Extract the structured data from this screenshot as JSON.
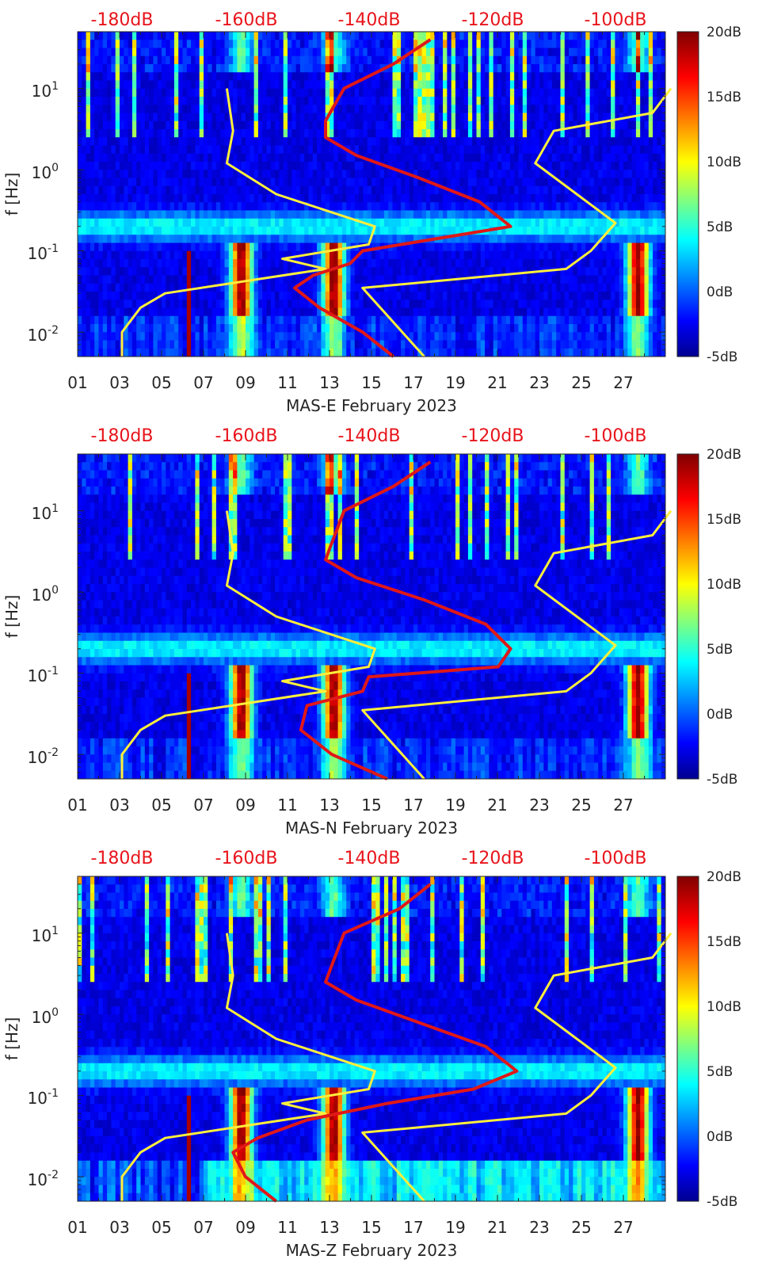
{
  "colors": {
    "top_label": "#e8141b",
    "noise_model": "#ffef3b",
    "median_curve": "#e01818",
    "text": "#262626"
  },
  "chart_data": [
    {
      "type": "heatmap",
      "name": "MAS-E",
      "title": "",
      "xlabel": "MAS-E February 2023",
      "ylabel": "f [Hz]",
      "x_unit": "day",
      "xlim": [
        1,
        29
      ],
      "x_tick_labels": [
        "01",
        "03",
        "05",
        "07",
        "09",
        "11",
        "13",
        "15",
        "17",
        "19",
        "21",
        "23",
        "25",
        "27"
      ],
      "y_scale": "log",
      "ylim": [
        0.005,
        50
      ],
      "y_tick_values": [
        0.01,
        0.1,
        1,
        10
      ],
      "y_tick_bases": [
        "10",
        "10",
        "10",
        "10"
      ],
      "y_tick_exponents": [
        "-2",
        "-1",
        "0",
        "1"
      ],
      "top_axis_labels": [
        "-180dB",
        "-160dB",
        "-140dB",
        "-120dB",
        "-100dB"
      ],
      "top_axis_db": [
        -180,
        -160,
        -140,
        -120,
        -100
      ],
      "colorbar": {
        "min": -5,
        "max": 20,
        "tick_labels": [
          "20dB",
          "15dB",
          "10dB",
          "5dB",
          "0dB",
          "-5dB"
        ],
        "tick_values": [
          20,
          15,
          10,
          5,
          0,
          -5
        ]
      },
      "series": [
        {
          "name": "Noise model low",
          "color": "yellow",
          "points": [
            [
              0.005,
              -180
            ],
            [
              0.01,
              -180
            ],
            [
              0.02,
              -177
            ],
            [
              0.03,
              -173
            ],
            [
              0.06,
              -147
            ],
            [
              0.08,
              -154
            ],
            [
              0.12,
              -140
            ],
            [
              0.2,
              -139
            ],
            [
              0.5,
              -155
            ],
            [
              1.2,
              -163
            ],
            [
              3,
              -162
            ],
            [
              10,
              -163
            ]
          ]
        },
        {
          "name": "Noise model high",
          "color": "yellow",
          "points": [
            [
              0.005,
              -131
            ],
            [
              0.035,
              -141
            ],
            [
              0.06,
              -108
            ],
            [
              0.1,
              -104
            ],
            [
              0.22,
              -100
            ],
            [
              1.2,
              -113
            ],
            [
              3,
              -110
            ],
            [
              5,
              -94
            ],
            [
              10,
              -91
            ]
          ]
        },
        {
          "name": "Median PSD",
          "color": "red",
          "points": [
            [
              0.005,
              -136
            ],
            [
              0.01,
              -141
            ],
            [
              0.02,
              -148
            ],
            [
              0.035,
              -152
            ],
            [
              0.05,
              -149
            ],
            [
              0.07,
              -143
            ],
            [
              0.1,
              -141
            ],
            [
              0.2,
              -117
            ],
            [
              0.4,
              -122
            ],
            [
              0.8,
              -132
            ],
            [
              1.5,
              -142
            ],
            [
              2.5,
              -147
            ],
            [
              4,
              -147
            ],
            [
              10,
              -144
            ],
            [
              20,
              -136
            ],
            [
              40,
              -130
            ]
          ]
        }
      ]
    },
    {
      "type": "heatmap",
      "name": "MAS-N",
      "title": "",
      "xlabel": "MAS-N February 2023",
      "ylabel": "f [Hz]",
      "x_unit": "day",
      "xlim": [
        1,
        29
      ],
      "x_tick_labels": [
        "01",
        "03",
        "05",
        "07",
        "09",
        "11",
        "13",
        "15",
        "17",
        "19",
        "21",
        "23",
        "25",
        "27"
      ],
      "y_scale": "log",
      "ylim": [
        0.005,
        50
      ],
      "y_tick_values": [
        0.01,
        0.1,
        1,
        10
      ],
      "y_tick_bases": [
        "10",
        "10",
        "10",
        "10"
      ],
      "y_tick_exponents": [
        "-2",
        "-1",
        "0",
        "1"
      ],
      "top_axis_labels": [
        "-180dB",
        "-160dB",
        "-140dB",
        "-120dB",
        "-100dB"
      ],
      "top_axis_db": [
        -180,
        -160,
        -140,
        -120,
        -100
      ],
      "colorbar": {
        "min": -5,
        "max": 20,
        "tick_labels": [
          "20dB",
          "15dB",
          "10dB",
          "5dB",
          "0dB",
          "-5dB"
        ],
        "tick_values": [
          20,
          15,
          10,
          5,
          0,
          -5
        ]
      },
      "series": [
        {
          "name": "Noise model low",
          "color": "yellow",
          "points": [
            [
              0.005,
              -180
            ],
            [
              0.01,
              -180
            ],
            [
              0.02,
              -177
            ],
            [
              0.03,
              -173
            ],
            [
              0.06,
              -147
            ],
            [
              0.08,
              -154
            ],
            [
              0.12,
              -140
            ],
            [
              0.2,
              -139
            ],
            [
              0.5,
              -155
            ],
            [
              1.2,
              -163
            ],
            [
              3,
              -162
            ],
            [
              10,
              -163
            ]
          ]
        },
        {
          "name": "Noise model high",
          "color": "yellow",
          "points": [
            [
              0.005,
              -131
            ],
            [
              0.035,
              -141
            ],
            [
              0.06,
              -108
            ],
            [
              0.1,
              -104
            ],
            [
              0.22,
              -100
            ],
            [
              1.2,
              -113
            ],
            [
              3,
              -110
            ],
            [
              5,
              -94
            ],
            [
              10,
              -91
            ]
          ]
        },
        {
          "name": "Median PSD",
          "color": "red",
          "points": [
            [
              0.005,
              -137
            ],
            [
              0.01,
              -146
            ],
            [
              0.02,
              -151
            ],
            [
              0.04,
              -150
            ],
            [
              0.06,
              -141
            ],
            [
              0.09,
              -140
            ],
            [
              0.12,
              -119
            ],
            [
              0.2,
              -117
            ],
            [
              0.4,
              -121
            ],
            [
              0.8,
              -131
            ],
            [
              1.5,
              -142
            ],
            [
              2.5,
              -147
            ],
            [
              4,
              -146
            ],
            [
              10,
              -144
            ],
            [
              20,
              -136
            ],
            [
              40,
              -130
            ]
          ]
        }
      ]
    },
    {
      "type": "heatmap",
      "name": "MAS-Z",
      "title": "",
      "xlabel": "MAS-Z February 2023",
      "ylabel": "f [Hz]",
      "x_unit": "day",
      "xlim": [
        1,
        29
      ],
      "x_tick_labels": [
        "01",
        "03",
        "05",
        "07",
        "09",
        "11",
        "13",
        "15",
        "17",
        "19",
        "21",
        "23",
        "25",
        "27"
      ],
      "y_scale": "log",
      "ylim": [
        0.005,
        50
      ],
      "y_tick_values": [
        0.01,
        0.1,
        1,
        10
      ],
      "y_tick_bases": [
        "10",
        "10",
        "10",
        "10"
      ],
      "y_tick_exponents": [
        "-2",
        "-1",
        "0",
        "1"
      ],
      "top_axis_labels": [
        "-180dB",
        "-160dB",
        "-140dB",
        "-120dB",
        "-100dB"
      ],
      "top_axis_db": [
        -180,
        -160,
        -140,
        -120,
        -100
      ],
      "colorbar": {
        "min": -5,
        "max": 20,
        "tick_labels": [
          "20dB",
          "15dB",
          "10dB",
          "5dB",
          "0dB",
          "-5dB"
        ],
        "tick_values": [
          20,
          15,
          10,
          5,
          0,
          -5
        ]
      },
      "series": [
        {
          "name": "Noise model low",
          "color": "yellow",
          "points": [
            [
              0.005,
              -180
            ],
            [
              0.01,
              -180
            ],
            [
              0.02,
              -177
            ],
            [
              0.03,
              -173
            ],
            [
              0.06,
              -147
            ],
            [
              0.08,
              -154
            ],
            [
              0.12,
              -140
            ],
            [
              0.2,
              -139
            ],
            [
              0.5,
              -155
            ],
            [
              1.2,
              -163
            ],
            [
              3,
              -162
            ],
            [
              10,
              -163
            ]
          ]
        },
        {
          "name": "Noise model high",
          "color": "yellow",
          "points": [
            [
              0.005,
              -131
            ],
            [
              0.035,
              -141
            ],
            [
              0.06,
              -108
            ],
            [
              0.1,
              -104
            ],
            [
              0.22,
              -100
            ],
            [
              1.2,
              -113
            ],
            [
              3,
              -110
            ],
            [
              5,
              -94
            ],
            [
              10,
              -91
            ]
          ]
        },
        {
          "name": "Median PSD",
          "color": "red",
          "points": [
            [
              0.005,
              -155
            ],
            [
              0.01,
              -160
            ],
            [
              0.02,
              -162
            ],
            [
              0.03,
              -158
            ],
            [
              0.05,
              -150
            ],
            [
              0.08,
              -137
            ],
            [
              0.12,
              -123
            ],
            [
              0.2,
              -116
            ],
            [
              0.4,
              -121
            ],
            [
              0.8,
              -132
            ],
            [
              1.5,
              -142
            ],
            [
              2.5,
              -147
            ],
            [
              4,
              -146
            ],
            [
              10,
              -144
            ],
            [
              20,
              -135
            ],
            [
              40,
              -130
            ]
          ]
        }
      ]
    }
  ]
}
